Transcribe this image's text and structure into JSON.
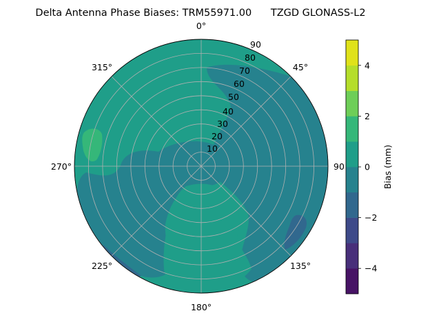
{
  "chart_data": {
    "type": "polar-contour",
    "title": "Delta Antenna Phase Biases: TRM55971.00      TZGD GLONASS-L2",
    "angle_ticks": [
      "0°",
      "45°",
      "90",
      "135°",
      "180°",
      "225°",
      "270°",
      "315°"
    ],
    "radial_ticks": [
      "10",
      "20",
      "30",
      "40",
      "50",
      "60",
      "70",
      "80",
      "90"
    ],
    "colorbar": {
      "label": "Bias (mm)",
      "range": [
        -5,
        5
      ],
      "ticks": [
        "4",
        "2",
        "0",
        "−2",
        "−4"
      ],
      "levels": [
        {
          "from": -5,
          "to": -4,
          "color": "#471365"
        },
        {
          "from": -4,
          "to": -3,
          "color": "#482f7a"
        },
        {
          "from": -3,
          "to": -2,
          "color": "#3e4a89"
        },
        {
          "from": -2,
          "to": -1,
          "color": "#31688e"
        },
        {
          "from": -1,
          "to": 0,
          "color": "#26828e"
        },
        {
          "from": 0,
          "to": 1,
          "color": "#1f9e89"
        },
        {
          "from": 1,
          "to": 2,
          "color": "#35b779"
        },
        {
          "from": 2,
          "to": 3,
          "color": "#6ece58"
        },
        {
          "from": 3,
          "to": 4,
          "color": "#b5de2b"
        },
        {
          "from": 4,
          "to": 5,
          "color": "#e0e21a"
        }
      ]
    },
    "background_bias_level": "0 to 1",
    "regions": [
      {
        "name": "upper-right",
        "level": "-1 to 0",
        "description": "azimuth ~30°-150°"
      },
      {
        "name": "center",
        "level": "-1 to 0",
        "description": "around zenith"
      },
      {
        "name": "lower-left",
        "level": "-1 to 0",
        "description": "azimuth ~200°-260°"
      },
      {
        "name": "west-patch",
        "level": "1 to 2",
        "description": "azimuth ~280°-290°, elevation near horizon"
      },
      {
        "name": "south-east",
        "level": "-2 to -1",
        "description": "azimuth ~125°-135°, horizon"
      },
      {
        "name": "south-west-edge",
        "level": "-2 to -1",
        "description": "azimuth ~215°-230°, horizon"
      },
      {
        "name": "south-lobe",
        "level": "0 to 1",
        "description": "azimuth ~150°-210°"
      }
    ]
  }
}
